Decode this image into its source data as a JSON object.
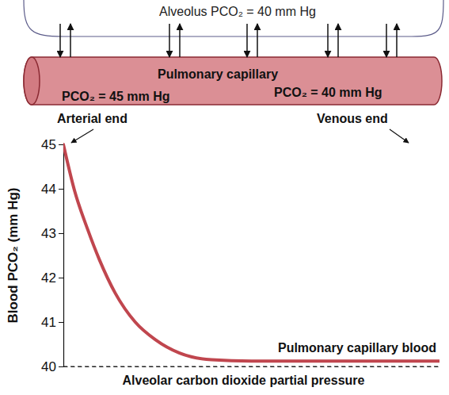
{
  "diagram": {
    "alveolus_label": "Alveolus PCO₂ = 40 mm Hg",
    "capillary_label": "Pulmonary capillary",
    "arterial_pco2": "PCO₂ = 45 mm Hg",
    "venous_pco2": "PCO₂ = 40 mm Hg",
    "arterial_end": "Arterial end",
    "venous_end": "Venous end"
  },
  "chart_data": {
    "type": "line",
    "y_label": "Blood PCO₂ (mm Hg)",
    "x": [
      0,
      0.03,
      0.064,
      0.096,
      0.138,
      0.191,
      0.245,
      0.309,
      0.394,
      0.5,
      0.75,
      1
    ],
    "xlim": [
      0,
      1
    ],
    "ylim": [
      40,
      45
    ],
    "yticks": [
      40,
      41,
      42,
      43,
      44,
      45
    ],
    "tick_labels": "y",
    "series": [
      {
        "name": "Pulmonary capillary blood",
        "color": "#c0464e",
        "values": [
          45,
          43.95,
          43.1,
          42.4,
          41.65,
          41.0,
          40.6,
          40.3,
          40.15,
          40.12,
          40.12,
          40.12
        ]
      }
    ],
    "annotations": [
      {
        "text": "Alveolar carbon dioxide partial pressure",
        "y": 40,
        "line_style": "dashed"
      }
    ]
  }
}
